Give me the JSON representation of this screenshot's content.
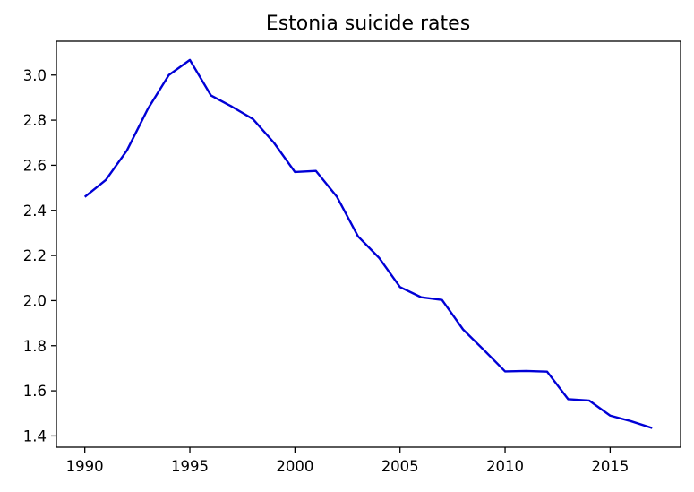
{
  "chart_data": {
    "type": "line",
    "title": "Estonia suicide rates",
    "xlabel": "",
    "ylabel": "",
    "xlim": [
      1988.65,
      2018.35
    ],
    "ylim": [
      1.35,
      3.15
    ],
    "x_ticks": [
      1990,
      1995,
      2000,
      2005,
      2010,
      2015
    ],
    "x_tick_labels": [
      "1990",
      "1995",
      "2000",
      "2005",
      "2010",
      "2015"
    ],
    "y_ticks": [
      1.4,
      1.6,
      1.8,
      2.0,
      2.2,
      2.4,
      2.6,
      2.8,
      3.0
    ],
    "y_tick_labels": [
      "1.4",
      "1.6",
      "1.8",
      "2.0",
      "2.2",
      "2.4",
      "2.6",
      "2.8",
      "3.0"
    ],
    "grid": false,
    "line_color": "#0000d6",
    "x": [
      1990,
      1991,
      1992,
      1993,
      1994,
      1995,
      1996,
      1997,
      1998,
      1999,
      2000,
      2001,
      2002,
      2003,
      2004,
      2005,
      2006,
      2007,
      2008,
      2009,
      2010,
      2011,
      2012,
      2013,
      2014,
      2015,
      2016,
      2017
    ],
    "values": [
      2.46,
      2.535,
      2.665,
      2.85,
      3.0,
      3.067,
      2.91,
      2.86,
      2.805,
      2.7,
      2.57,
      2.575,
      2.46,
      2.285,
      2.19,
      2.06,
      2.015,
      2.003,
      1.872,
      1.78,
      1.686,
      1.688,
      1.685,
      1.563,
      1.557,
      1.49,
      1.465,
      1.435
    ]
  }
}
